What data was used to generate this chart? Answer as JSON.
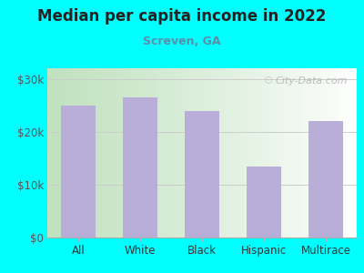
{
  "title": "Median per capita income in 2022",
  "subtitle": "Screven, GA",
  "categories": [
    "All",
    "White",
    "Black",
    "Hispanic",
    "Multirace"
  ],
  "values": [
    25000,
    26500,
    24000,
    13500,
    22000
  ],
  "bar_color": "#b8aed8",
  "background_color": "#00FFFF",
  "plot_bg_left": "#deeedd",
  "plot_bg_right": "#ffffff",
  "title_color": "#222222",
  "subtitle_color": "#5a8fa8",
  "yticks": [
    0,
    10000,
    20000,
    30000
  ],
  "ylim": [
    0,
    32000
  ],
  "watermark": "City-Data.com",
  "watermark_color": "#aaaaaa"
}
